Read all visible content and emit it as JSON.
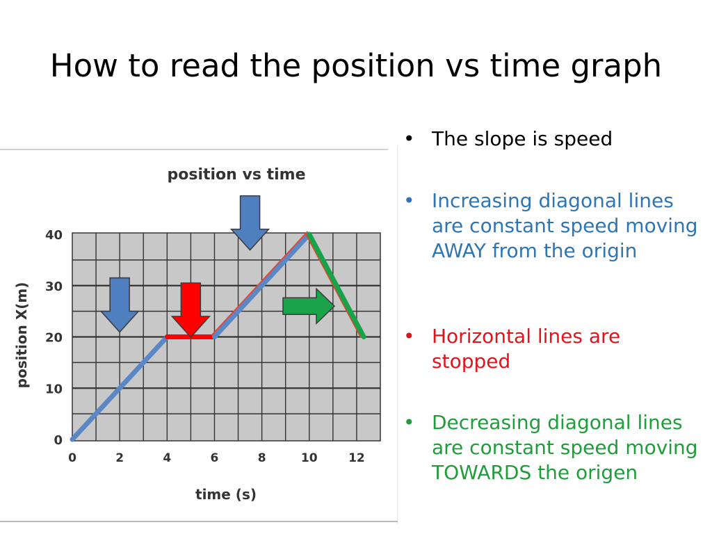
{
  "slide": {
    "title": "How to read the position vs time graph"
  },
  "colors": {
    "blue_line": "#5b87c5",
    "red_line": "#ff0000",
    "green_line": "#16a34a",
    "red_text": "#e2141b",
    "blue_text": "#2e75b6",
    "green_text": "#1f9d3a",
    "grid_bg": "#c8c8c8",
    "arrow_blue": "#4f7fbf",
    "arrow_red": "#ff0000",
    "arrow_green": "#1aa34a"
  },
  "chart_data": {
    "type": "line",
    "title": "position vs time",
    "xlabel": "time (s)",
    "ylabel": "position X(m)",
    "xlim": [
      0,
      13
    ],
    "ylim": [
      0,
      40
    ],
    "xticks": [
      0,
      2,
      4,
      6,
      8,
      10,
      12
    ],
    "yticks": [
      0,
      10,
      20,
      30,
      40
    ],
    "grid": true,
    "segments": [
      {
        "color": "blue",
        "points": [
          [
            0,
            0
          ],
          [
            4,
            20
          ]
        ]
      },
      {
        "color": "red",
        "points": [
          [
            4,
            20
          ],
          [
            6,
            20
          ]
        ]
      },
      {
        "color": "blue",
        "points": [
          [
            6,
            20
          ],
          [
            10,
            40
          ]
        ]
      },
      {
        "color": "green",
        "points": [
          [
            10,
            40
          ],
          [
            12.3,
            20
          ]
        ]
      }
    ],
    "arrows": [
      {
        "color": "blue",
        "direction": "down",
        "at": [
          2,
          25
        ]
      },
      {
        "color": "red",
        "direction": "down",
        "at": [
          5,
          24
        ]
      },
      {
        "color": "blue",
        "direction": "down",
        "at": [
          7.5,
          41
        ]
      },
      {
        "color": "green",
        "direction": "right",
        "at": [
          10.3,
          26
        ]
      }
    ]
  },
  "bullets": [
    {
      "marker": "•",
      "text": "The slope is speed",
      "color": "#000000"
    },
    {
      "marker": "•",
      "text": "Increasing diagonal lines are constant speed moving AWAY from the origin",
      "color": "#2e75b6"
    },
    {
      "marker": "•",
      "text": "Horizontal lines are stopped",
      "color": "#e2141b"
    },
    {
      "marker": "•",
      "text": "Decreasing diagonal lines are constant speed moving TOWARDS the origen",
      "color": "#1f9d3a"
    }
  ]
}
